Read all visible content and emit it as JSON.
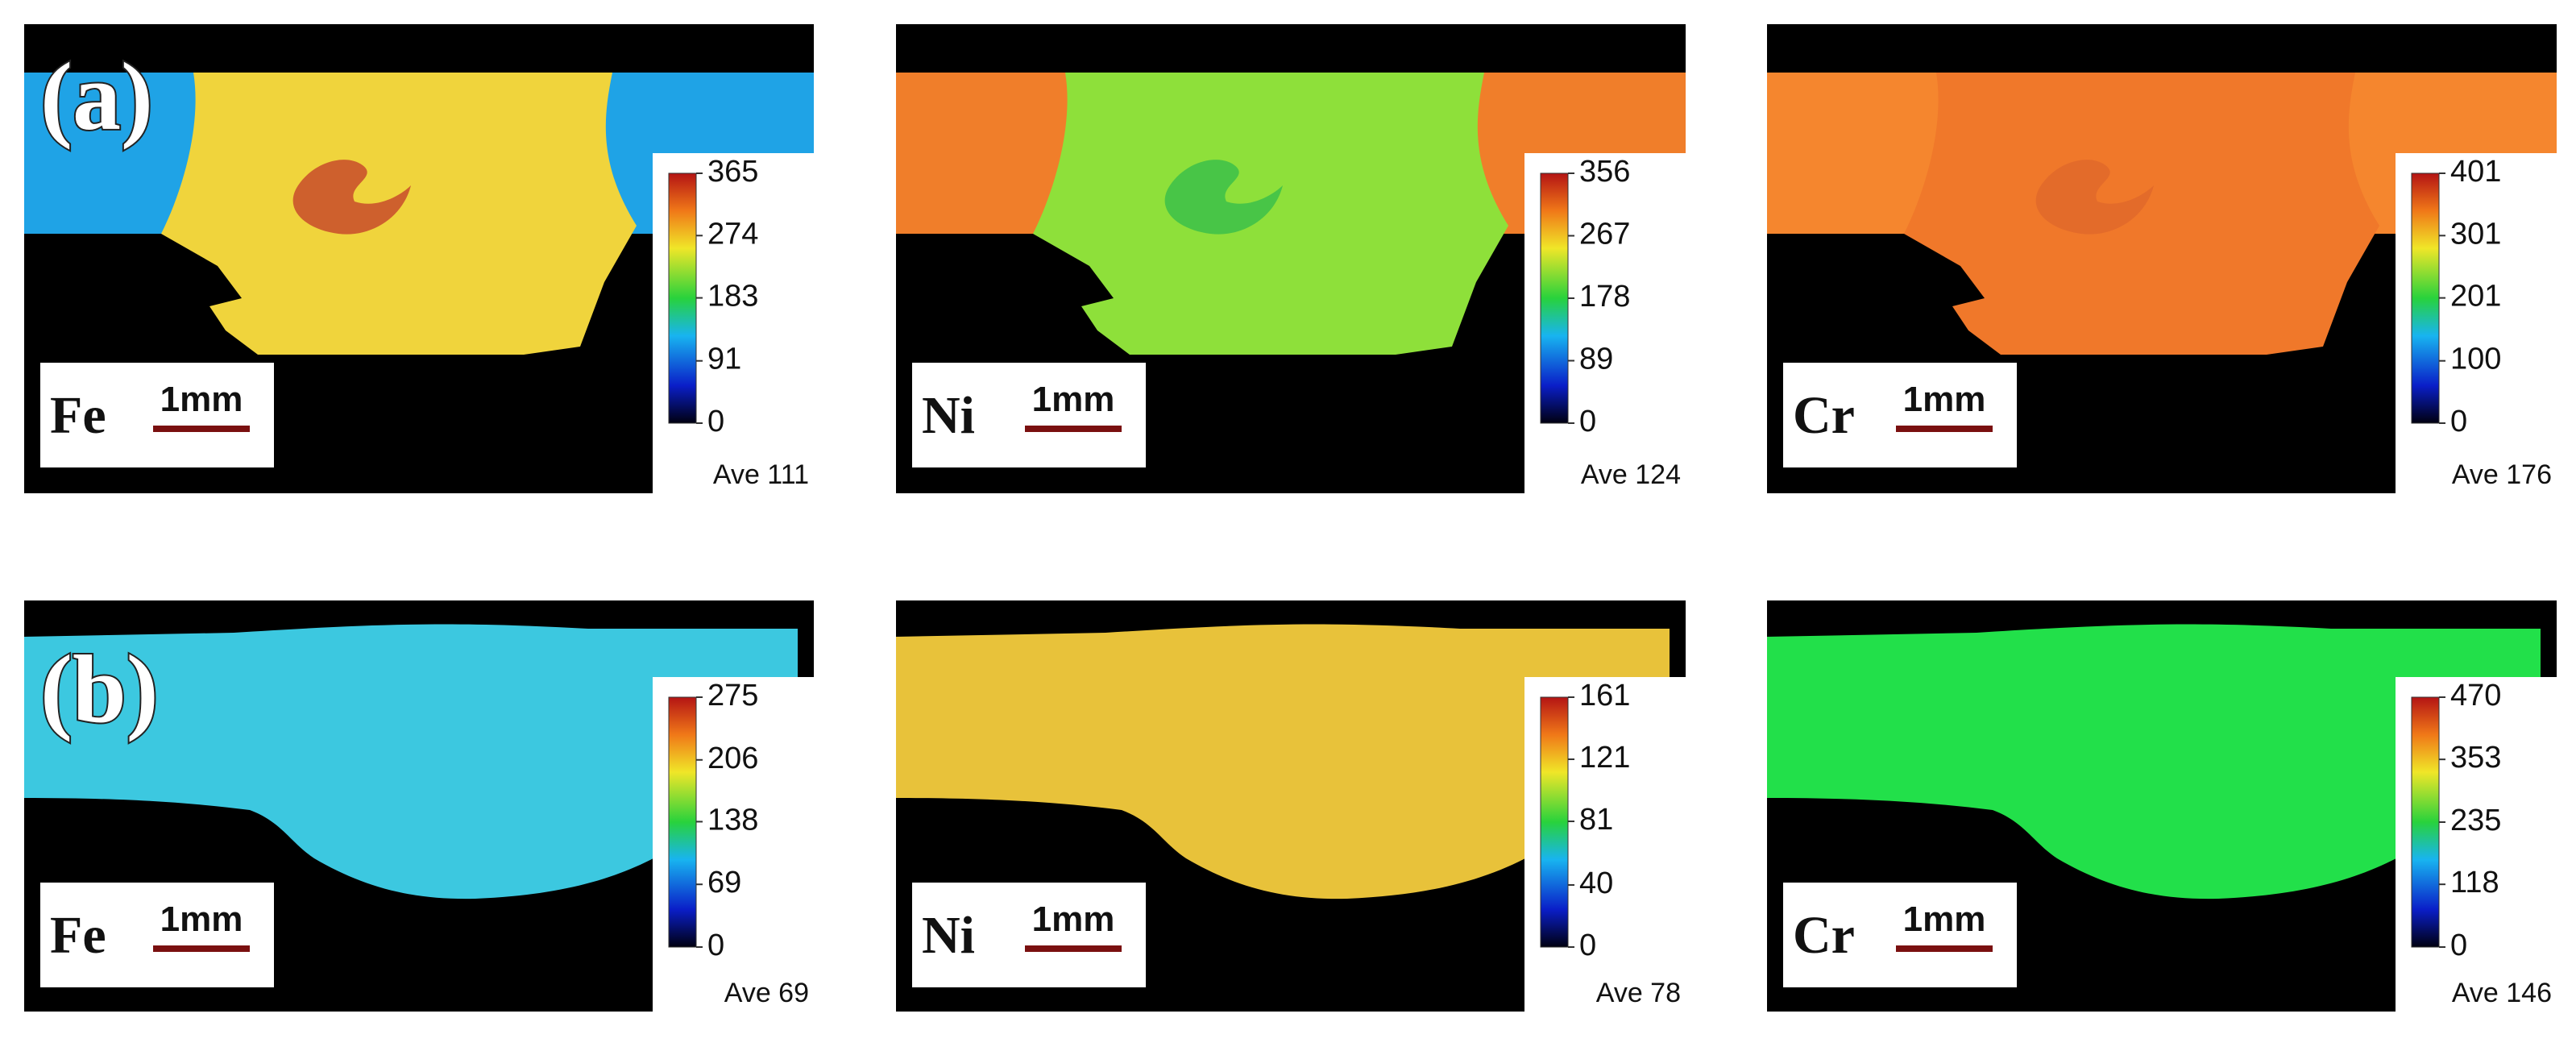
{
  "rows": [
    {
      "label": "(a)",
      "panels": [
        {
          "element": "Fe",
          "scale": "1mm",
          "ticks": [
            0,
            91,
            183,
            274,
            365
          ],
          "average": "Ave 111",
          "weld_color": "#f0d43c",
          "base_color": "#1fa3e6",
          "spot_color": "#c84b2a"
        },
        {
          "element": "Ni",
          "scale": "1mm",
          "ticks": [
            0,
            89,
            178,
            267,
            356
          ],
          "average": "Ave 124",
          "weld_color": "#8ee03a",
          "base_color": "#f07e2a",
          "spot_color": "#3cc04a"
        },
        {
          "element": "Cr",
          "scale": "1mm",
          "ticks": [
            0,
            100,
            201,
            301,
            401
          ],
          "average": "Ave 176",
          "weld_color": "#f0782a",
          "base_color": "#f5862e",
          "spot_color": "#e0682a"
        }
      ]
    },
    {
      "label": "(b)",
      "panels": [
        {
          "element": "Fe",
          "scale": "1mm",
          "ticks": [
            0,
            69,
            138,
            206,
            275
          ],
          "average": "Ave 69",
          "weld_color": "#3cc8e0"
        },
        {
          "element": "Ni",
          "scale": "1mm",
          "ticks": [
            0,
            40,
            81,
            121,
            161
          ],
          "average": "Ave 78",
          "weld_color": "#e8c23a"
        },
        {
          "element": "Cr",
          "scale": "1mm",
          "ticks": [
            0,
            118,
            235,
            353,
            470
          ],
          "average": "Ave 146",
          "weld_color": "#22e04a"
        }
      ]
    }
  ]
}
